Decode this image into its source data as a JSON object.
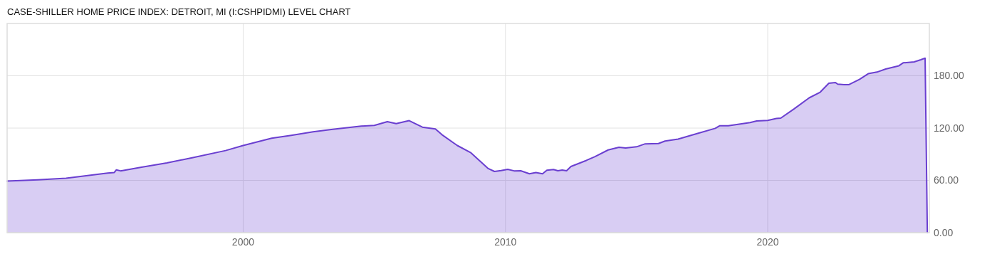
{
  "chart_data": {
    "type": "area",
    "title": "CASE-SHILLER HOME PRICE INDEX: DETROIT, MI (I:CSHPIDMI) LEVEL CHART",
    "x": [
      "1991-01",
      "1992-03",
      "1993-04",
      "1994-11",
      "1995-02",
      "1995-03",
      "1995-05",
      "1996-02",
      "1997-02",
      "1998-02",
      "1999-05",
      "2000-01",
      "2001-02",
      "2001-11",
      "2002-09",
      "2003-06",
      "2004-07",
      "2005-01",
      "2005-07",
      "2005-11",
      "2006-05",
      "2006-11",
      "2007-05",
      "2007-08",
      "2008-03",
      "2008-09",
      "2009-05",
      "2009-08",
      "2009-11",
      "2010-02",
      "2010-05",
      "2010-08",
      "2010-12",
      "2011-03",
      "2011-06",
      "2011-08",
      "2011-11",
      "2012-01",
      "2012-03",
      "2012-05",
      "2012-07",
      "2013-02",
      "2013-06",
      "2013-12",
      "2014-05",
      "2014-08",
      "2015-01",
      "2015-05",
      "2015-11",
      "2016-02",
      "2016-08",
      "2017-05",
      "2018-01",
      "2018-03",
      "2018-07",
      "2019-05",
      "2019-08",
      "2020-01",
      "2020-05",
      "2020-07",
      "2021-01",
      "2021-08",
      "2022-01",
      "2022-05",
      "2022-08",
      "2022-09",
      "2022-12",
      "2023-02",
      "2023-07",
      "2023-11",
      "2024-03",
      "2024-07",
      "2025-01",
      "2025-03",
      "2025-08",
      "2025-11",
      "2026-01",
      "2026-02"
    ],
    "series": [
      {
        "color": "#6a3fd0",
        "values": [
          59.2,
          60.7,
          62.5,
          68.3,
          69.0,
          72.0,
          70.9,
          74.9,
          80.0,
          86.2,
          94.2,
          100.0,
          108.4,
          111.7,
          115.7,
          118.6,
          122.3,
          123.0,
          127.3,
          125.1,
          128.5,
          121.1,
          119.0,
          112.4,
          100.0,
          92.0,
          73.8,
          70.2,
          71.3,
          72.7,
          70.9,
          71.0,
          67.6,
          69.0,
          67.6,
          71.6,
          72.5,
          71.0,
          71.8,
          71.0,
          75.9,
          82.9,
          87.3,
          94.9,
          97.9,
          97.1,
          98.5,
          101.9,
          102.2,
          105.1,
          107.3,
          113.9,
          119.7,
          122.6,
          122.6,
          126.3,
          128.2,
          128.8,
          131.0,
          131.4,
          141.9,
          154.7,
          161.2,
          171.4,
          172.2,
          170.4,
          169.7,
          169.7,
          175.8,
          182.4,
          184.2,
          187.8,
          191.5,
          194.8,
          195.9,
          198.4,
          200.2,
          0
        ]
      }
    ],
    "xlim": [
      "1991-01",
      "2026-03"
    ],
    "xticks": [
      "2000",
      "2010",
      "2020"
    ],
    "ylim": [
      0,
      240
    ],
    "yticks": [
      {
        "value": 0,
        "label": "0.00"
      },
      {
        "value": 60,
        "label": "60.00"
      },
      {
        "value": 120,
        "label": "120.00"
      },
      {
        "value": 180,
        "label": "180.00"
      }
    ],
    "grid": true
  }
}
